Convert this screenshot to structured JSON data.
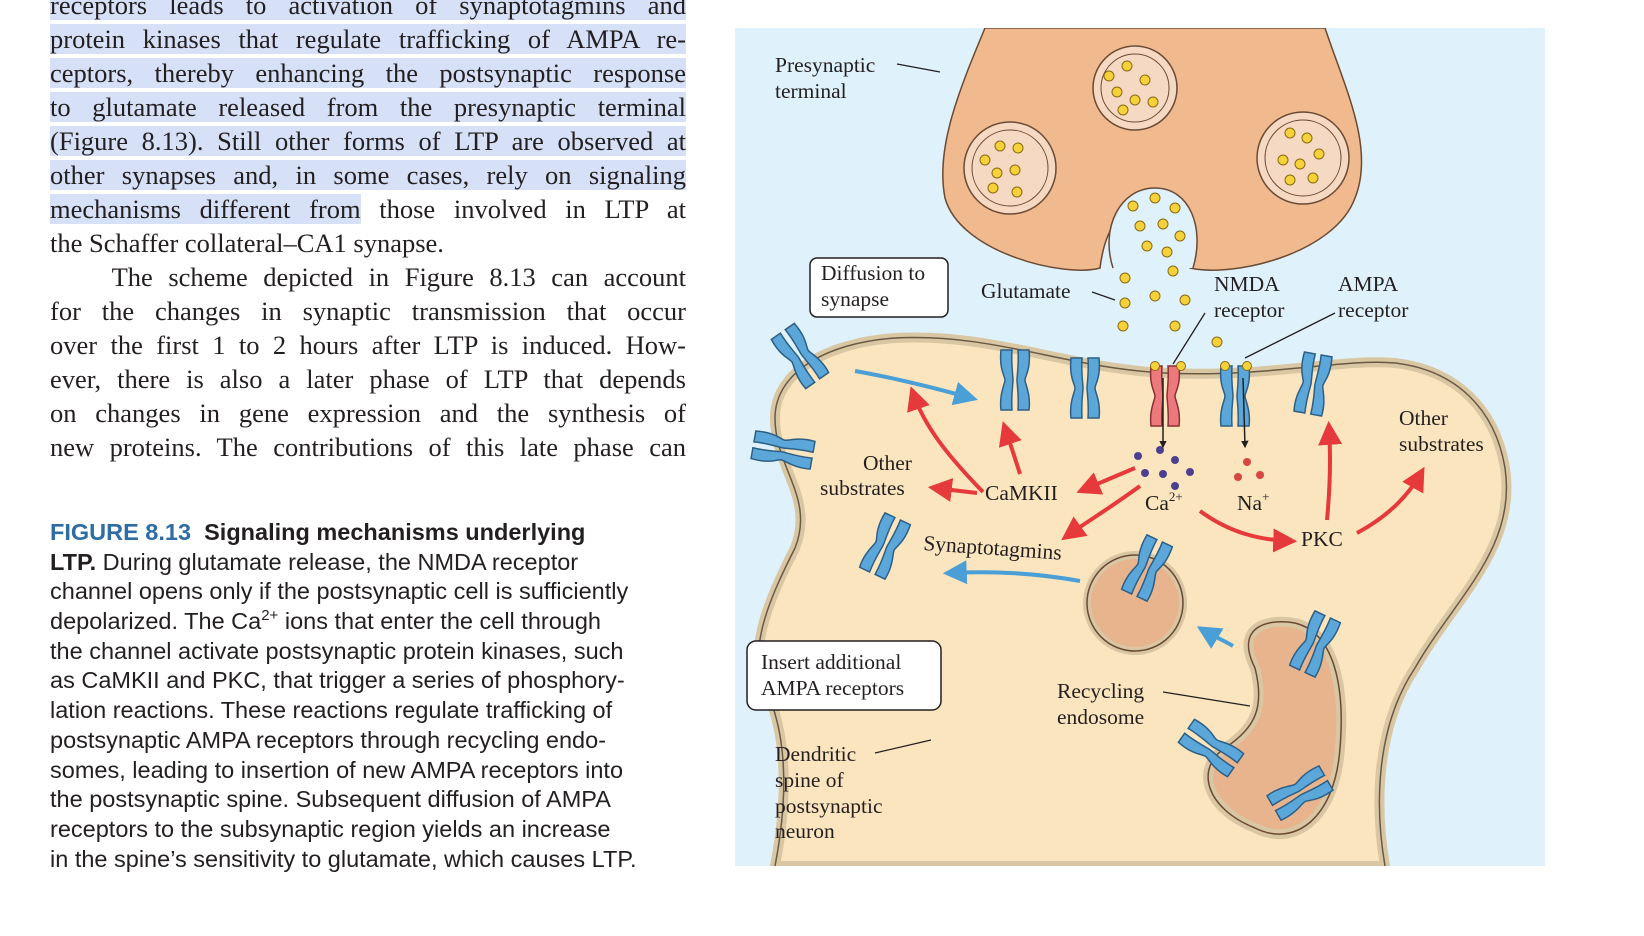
{
  "body_text": {
    "lines": [
      {
        "pre": "",
        "hl": "receptors leads to activation of synaptotagmins and",
        "post": ""
      },
      {
        "pre": "",
        "hl": "protein kinases that regulate trafficking of AMPA re-",
        "post": ""
      },
      {
        "pre": "",
        "hl": "ceptors, thereby enhancing the postsynaptic response",
        "post": ""
      },
      {
        "pre": "",
        "hl": "to glutamate released from the presynaptic terminal",
        "post": ""
      },
      {
        "pre": "",
        "hl": "(Figure 8.13). Still other forms of LTP are observed at",
        "post": ""
      },
      {
        "pre": "",
        "hl": "other synapses and, in some cases, rely on signaling",
        "post": ""
      },
      {
        "pre": "",
        "hl": "mechanisms different from",
        "post": " those involved in LTP at"
      },
      {
        "pre": "the Schaffer collateral–CA1 synapse.",
        "hl": "",
        "post": ""
      },
      {
        "pre": "    The scheme depicted in Figure 8.13 can account",
        "hl": "",
        "post": ""
      },
      {
        "pre": "for the changes in synaptic transmission that occur",
        "hl": "",
        "post": ""
      },
      {
        "pre": "over the first 1 to 2 hours after LTP is induced. How-",
        "hl": "",
        "post": ""
      },
      {
        "pre": "ever, there is also a later phase of LTP that depends",
        "hl": "",
        "post": ""
      },
      {
        "pre": "on changes in gene expression and the synthesis of",
        "hl": "",
        "post": ""
      },
      {
        "pre": "new proteins. The contributions of this late phase can",
        "hl": "",
        "post": ""
      }
    ]
  },
  "caption": {
    "number": "FIGURE 8.13",
    "title_part1": "Signaling mechanisms underlying",
    "title_part2": "LTP.",
    "first_line_rest": " During glutamate release, the NMDA receptor",
    "line3": "channel opens only if the postsynaptic cell is sufficiently",
    "line4_pre": "depolarized. The Ca",
    "line4_sup": "2+",
    "line4_post": " ions that enter the cell through",
    "lines_rest": [
      "the channel activate postsynaptic protein kinases, such",
      "as CaMKII and PKC, that trigger a series of phosphory-",
      "lation reactions. These reactions regulate trafficking of",
      "postsynaptic AMPA receptors through recycling endo-",
      "somes, leading to insertion of new AMPA receptors into",
      "the postsynaptic spine. Subsequent diffusion of AMPA",
      "receptors to the subsynaptic region yields an increase",
      "in the spine’s sensitivity to glutamate, which causes LTP."
    ]
  },
  "figure": {
    "colors": {
      "background": "#dff1fa",
      "presynaptic": "#f0b98e",
      "spine": "#fbe5bf",
      "receptor_ampa": "#5ba7d9",
      "receptor_nmda": "#ec7a7d",
      "vesicle_dot": "#f6d23a",
      "red_arrow": "#e5393b",
      "blue_arrow": "#4a9fd6",
      "calcium": "#4b3f8f",
      "sodium": "#d9453f"
    },
    "labels": {
      "presynaptic_1": "Presynaptic",
      "presynaptic_2": "terminal",
      "diffusion_1": "Diffusion to",
      "diffusion_2": "synapse",
      "glutamate": "Glutamate",
      "nmda_1": "NMDA",
      "nmda_2": "receptor",
      "ampa_1": "AMPA",
      "ampa_2": "receptor",
      "other_left_1": "Other",
      "other_left_2": "substrates",
      "camkii": "CaMKII",
      "ca": "Ca",
      "ca_sup": "2+",
      "na": "Na",
      "na_sup": "+",
      "pkc": "PKC",
      "other_right_1": "Other",
      "other_right_2": "substrates",
      "synaptotagmins": "Synaptotagmins",
      "insert_1": "Insert additional",
      "insert_2": "AMPA receptors",
      "recycling_1": "Recycling",
      "recycling_2": "endosome",
      "dendritic_1": "Dendritic",
      "dendritic_2": "spine of",
      "dendritic_3": "postsynaptic",
      "dendritic_4": "neuron"
    }
  }
}
